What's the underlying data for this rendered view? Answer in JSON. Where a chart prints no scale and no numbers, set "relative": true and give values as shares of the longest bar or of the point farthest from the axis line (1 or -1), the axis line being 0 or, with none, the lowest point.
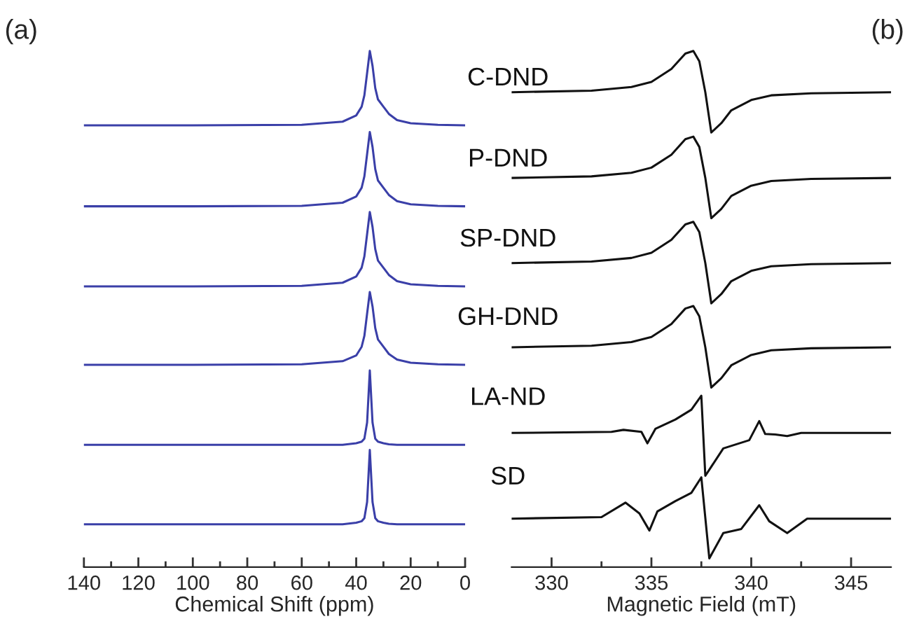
{
  "chart_data": [
    {
      "type": "line",
      "title": "(a)",
      "xlabel": "Chemical Shift (ppm)",
      "relative": true,
      "xlim": [
        140,
        0
      ],
      "xticks": [
        0,
        {
          "value": 10,
          "label": null
        },
        20,
        {
          "value": 30,
          "label": null
        },
        40,
        {
          "value": 50,
          "label": null
        },
        60,
        {
          "value": 70,
          "label": null
        },
        80,
        {
          "value": 90,
          "label": null
        },
        100,
        {
          "value": 110,
          "label": null
        },
        120,
        {
          "value": 130,
          "label": null
        },
        140
      ],
      "x": [
        140,
        100,
        60,
        45,
        40,
        38,
        37,
        36,
        35,
        34,
        33,
        32,
        30,
        28,
        25,
        20,
        10,
        0
      ],
      "series": [
        {
          "name": "C-DND",
          "color": "#3a3fa8",
          "values": [
            0.856,
            0.856,
            0.857,
            0.863,
            0.875,
            0.892,
            0.914,
            0.957,
            1.0,
            0.971,
            0.928,
            0.906,
            0.892,
            0.878,
            0.866,
            0.86,
            0.857,
            0.856
          ]
        },
        {
          "name": "P-DND",
          "color": "#3a3fa8",
          "values": [
            0.699,
            0.699,
            0.7,
            0.706,
            0.718,
            0.735,
            0.757,
            0.8,
            0.843,
            0.814,
            0.771,
            0.749,
            0.735,
            0.721,
            0.709,
            0.703,
            0.7,
            0.699
          ]
        },
        {
          "name": "SP-DND",
          "color": "#3a3fa8",
          "values": [
            0.544,
            0.544,
            0.545,
            0.551,
            0.563,
            0.58,
            0.602,
            0.645,
            0.688,
            0.659,
            0.616,
            0.594,
            0.58,
            0.566,
            0.554,
            0.548,
            0.545,
            0.544
          ]
        },
        {
          "name": "GH-DND",
          "color": "#3a3fa8",
          "values": [
            0.392,
            0.392,
            0.393,
            0.399,
            0.41,
            0.427,
            0.448,
            0.491,
            0.533,
            0.505,
            0.463,
            0.441,
            0.427,
            0.413,
            0.402,
            0.396,
            0.393,
            0.392
          ]
        },
        {
          "name": "LA-ND",
          "color": "#3a3fa8",
          "values": [
            0.237,
            0.237,
            0.237,
            0.237,
            0.24,
            0.243,
            0.249,
            0.28,
            0.381,
            0.28,
            0.249,
            0.243,
            0.24,
            0.238,
            0.237,
            0.237,
            0.237,
            0.237
          ]
        },
        {
          "name": "SD",
          "color": "#3a3fa8",
          "values": [
            0.083,
            0.083,
            0.083,
            0.083,
            0.086,
            0.089,
            0.095,
            0.126,
            0.227,
            0.126,
            0.095,
            0.089,
            0.086,
            0.084,
            0.083,
            0.083,
            0.083,
            0.083
          ]
        }
      ],
      "grid": false,
      "legend": false
    },
    {
      "type": "line",
      "title": "(b)",
      "xlabel": "Magnetic Field (mT)",
      "relative": true,
      "xlim": [
        328,
        347
      ],
      "xticks": [
        330,
        {
          "value": 332.5,
          "label": null
        },
        335,
        {
          "value": 337.5,
          "label": null
        },
        340,
        {
          "value": 342.5,
          "label": null
        },
        345
      ],
      "x": [
        328,
        332,
        334,
        335,
        336,
        336.7,
        337.1,
        337.4,
        337.7,
        338.0,
        338.5,
        339,
        340,
        341,
        343,
        347
      ],
      "series": [
        {
          "color": "#111111",
          "values": [
            0.92,
            0.923,
            0.93,
            0.94,
            0.965,
            0.995,
            1.0,
            0.98,
            0.92,
            0.842,
            0.86,
            0.885,
            0.905,
            0.914,
            0.918,
            0.92
          ]
        },
        {
          "color": "#111111",
          "values": [
            0.754,
            0.757,
            0.764,
            0.774,
            0.799,
            0.829,
            0.834,
            0.814,
            0.754,
            0.676,
            0.694,
            0.719,
            0.739,
            0.748,
            0.752,
            0.754
          ]
        },
        {
          "color": "#111111",
          "values": [
            0.589,
            0.592,
            0.599,
            0.609,
            0.634,
            0.664,
            0.669,
            0.649,
            0.589,
            0.511,
            0.529,
            0.554,
            0.574,
            0.583,
            0.587,
            0.589
          ]
        },
        {
          "color": "#111111",
          "values": [
            0.426,
            0.429,
            0.436,
            0.446,
            0.471,
            0.501,
            0.506,
            0.486,
            0.426,
            0.348,
            0.366,
            0.391,
            0.411,
            0.42,
            0.424,
            0.426
          ]
        },
        {
          "color": "#111111",
          "x": [
            328,
            333,
            333.6,
            334.5,
            334.8,
            335.2,
            336.2,
            337,
            337.5,
            337.7,
            338.6,
            339.9,
            340.4,
            340.7,
            341.2,
            341.8,
            342.5,
            347
          ],
          "values": [
            0.26,
            0.262,
            0.266,
            0.262,
            0.24,
            0.268,
            0.286,
            0.305,
            0.332,
            0.177,
            0.23,
            0.246,
            0.283,
            0.258,
            0.257,
            0.254,
            0.26,
            0.26
          ]
        },
        {
          "color": "#111111",
          "x": [
            328,
            332.5,
            333.7,
            334.4,
            334.9,
            335.3,
            336.2,
            337,
            337.5,
            337.9,
            338.6,
            339.5,
            340.4,
            340.9,
            341.8,
            342.8,
            347
          ],
          "values": [
            0.094,
            0.097,
            0.125,
            0.104,
            0.071,
            0.108,
            0.128,
            0.144,
            0.174,
            0.017,
            0.066,
            0.074,
            0.12,
            0.089,
            0.066,
            0.094,
            0.094
          ]
        }
      ],
      "grid": false,
      "legend": false
    }
  ]
}
